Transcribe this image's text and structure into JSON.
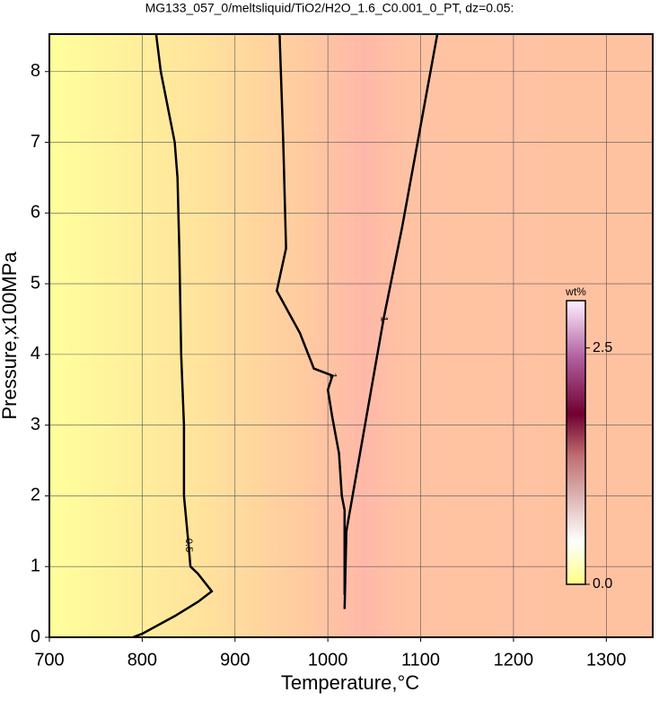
{
  "chart_data": {
    "type": "contour",
    "title": "MG133_057_0/meltsliquid/TiO2/H2O_1.6_C0.001_0_PT, dz=0.05:",
    "x_label": "Temperature,°C",
    "y_label": "Pressure,x100MPa",
    "xlim": [
      700,
      1350
    ],
    "ylim": [
      0,
      8.53
    ],
    "xticks": [
      700,
      800,
      900,
      1000,
      1100,
      1200,
      1300
    ],
    "yticks": [
      0,
      1,
      2,
      3,
      4,
      5,
      6,
      7,
      8
    ],
    "grid": true,
    "contours": [
      {
        "level": 0.5,
        "x": [
          815,
          820,
          835,
          838,
          840,
          842,
          845,
          845,
          850,
          852,
          860,
          875,
          860,
          835,
          800,
          790
        ],
        "y": [
          8.53,
          8.0,
          7.0,
          6.5,
          5.5,
          4.0,
          3.0,
          2.0,
          1.3,
          1.0,
          0.9,
          0.65,
          0.5,
          0.3,
          0.05,
          0
        ]
      },
      {
        "level": 1,
        "x": [
          948,
          952,
          955,
          945,
          970,
          985,
          1005,
          1000,
          1005,
          1012,
          1015,
          1018,
          1018
        ],
        "y": [
          8.53,
          7.0,
          5.5,
          4.9,
          4.3,
          3.8,
          3.7,
          3.5,
          3.1,
          2.6,
          2.0,
          1.8,
          0.6
        ]
      },
      {
        "level": 1,
        "x": [
          1018,
          1020,
          1040,
          1060,
          1080,
          1118
        ],
        "y": [
          0.4,
          1.5,
          3.0,
          4.5,
          5.8,
          8.53
        ]
      }
    ],
    "colorbar": {
      "label": "wt%",
      "lim": [
        0,
        3.0
      ],
      "ticks": [
        {
          "value": 0,
          "label": "0.0"
        },
        2.5
      ]
    }
  }
}
